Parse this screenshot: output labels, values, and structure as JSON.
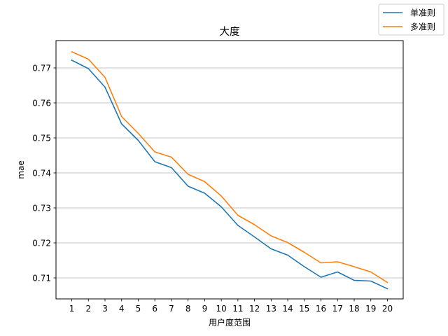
{
  "chart_data": {
    "type": "line",
    "title": "大度",
    "xlabel": "用户度范围",
    "ylabel": "mae",
    "x": [
      1,
      2,
      3,
      4,
      5,
      6,
      7,
      8,
      9,
      10,
      11,
      12,
      13,
      14,
      15,
      16,
      17,
      18,
      19,
      20
    ],
    "xticks": [
      "1",
      "2",
      "3",
      "4",
      "5",
      "6",
      "7",
      "8",
      "9",
      "10",
      "11",
      "12",
      "13",
      "14",
      "15",
      "16",
      "17",
      "18",
      "19",
      "20"
    ],
    "yticks": [
      "0.71",
      "0.72",
      "0.73",
      "0.74",
      "0.75",
      "0.76",
      "0.77"
    ],
    "ylim": [
      0.704,
      0.7778
    ],
    "xlim": [
      0.05,
      20.95
    ],
    "grid": "y",
    "legend_position": "top-right",
    "series": [
      {
        "name": "单准则",
        "color": "#1f77b4",
        "values": [
          0.7722,
          0.7698,
          0.7645,
          0.754,
          0.7493,
          0.7432,
          0.7415,
          0.7362,
          0.7342,
          0.7303,
          0.725,
          0.7217,
          0.7183,
          0.7165,
          0.7132,
          0.7102,
          0.7117,
          0.7093,
          0.7091,
          0.7069
        ]
      },
      {
        "name": "多准则",
        "color": "#ff7f0e",
        "values": [
          0.7746,
          0.7725,
          0.7673,
          0.7561,
          0.7513,
          0.746,
          0.7445,
          0.7396,
          0.7375,
          0.7334,
          0.7279,
          0.7252,
          0.722,
          0.7201,
          0.7173,
          0.7143,
          0.7146,
          0.7132,
          0.7117,
          0.7087
        ]
      }
    ]
  }
}
